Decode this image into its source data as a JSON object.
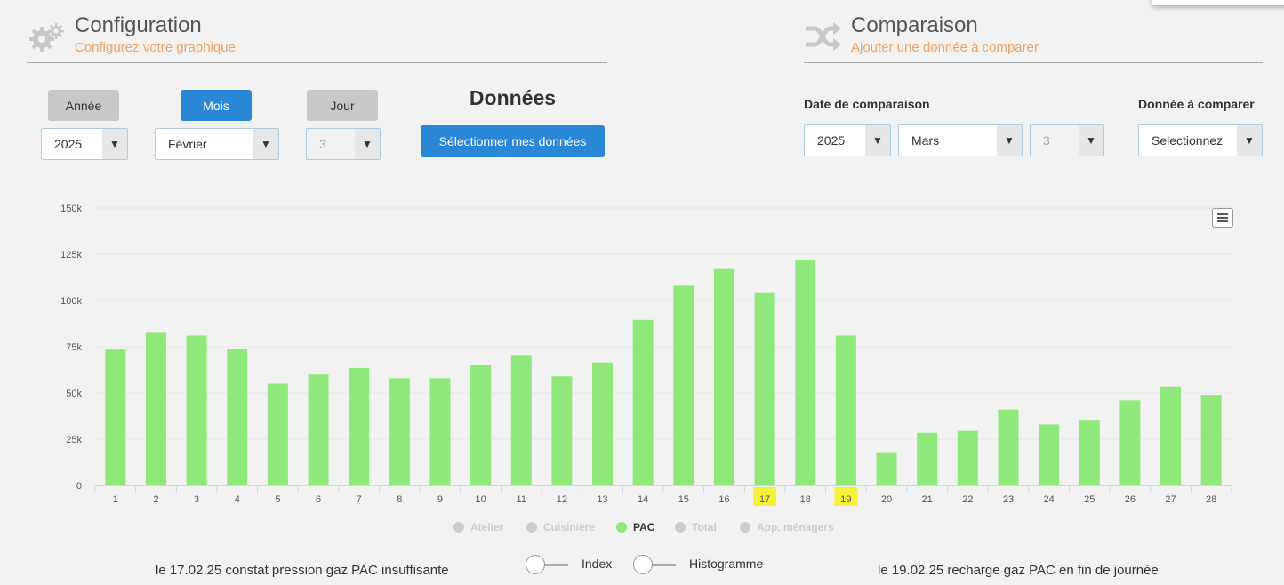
{
  "config": {
    "title": "Configuration",
    "subtitle": "Configurez votre graphique",
    "tabs": {
      "year": "Année",
      "month": "Mois",
      "day": "Jour"
    },
    "year_value": "2025",
    "month_value": "Février",
    "day_value": "3",
    "data_heading": "Données",
    "select_button": "Sélectionner mes données"
  },
  "comparison": {
    "title": "Comparaison",
    "subtitle": "Ajouter une donnée à comparer",
    "date_label": "Date de comparaison",
    "data_label": "Donnée à comparer",
    "year_value": "2025",
    "month_value": "Mars",
    "day_value": "3",
    "data_value": "Selectionnez"
  },
  "chart_data": {
    "type": "bar",
    "categories": [
      "1",
      "2",
      "3",
      "4",
      "5",
      "6",
      "7",
      "8",
      "9",
      "10",
      "11",
      "12",
      "13",
      "14",
      "15",
      "16",
      "17",
      "18",
      "19",
      "20",
      "21",
      "22",
      "23",
      "24",
      "25",
      "26",
      "27",
      "28"
    ],
    "series": [
      {
        "name": "PAC",
        "values": [
          73500,
          83000,
          81000,
          74000,
          55000,
          60000,
          63500,
          58000,
          58000,
          65000,
          70500,
          59000,
          66500,
          89500,
          108000,
          117000,
          104000,
          122000,
          81000,
          18000,
          28500,
          29500,
          41000,
          33000,
          35500,
          46000,
          53500,
          49000
        ]
      }
    ],
    "ylim": [
      0,
      150000
    ],
    "yticks": [
      "0",
      "25k",
      "50k",
      "75k",
      "100k",
      "125k",
      "150k"
    ],
    "highlighted_categories": [
      "17",
      "19"
    ],
    "bar_color": "#90e87a",
    "highlight_color": "#f5f03a",
    "legend": [
      {
        "label": "Atelier",
        "active": false
      },
      {
        "label": "Cuisinière",
        "active": false
      },
      {
        "label": "PAC",
        "active": true
      },
      {
        "label": "Total",
        "active": false
      },
      {
        "label": "App. ménagers",
        "active": false
      }
    ]
  },
  "toggles": {
    "index": "Index",
    "histogram": "Histogramme"
  },
  "notes": {
    "left": "le 17.02.25 constat pression gaz PAC insuffisante",
    "right": "le 19.02.25 recharge gaz PAC en fin de journée"
  },
  "icons": {
    "config": "gears-icon",
    "comparison": "shuffle-icon",
    "menu": "hamburger-menu-icon",
    "dropdown": "triangle-down-icon"
  }
}
